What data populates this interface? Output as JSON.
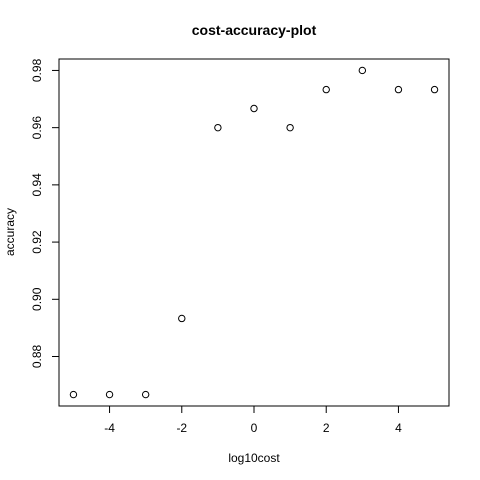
{
  "chart_data": {
    "type": "scatter",
    "title": "cost-accuracy-plot",
    "xlabel": "log10cost",
    "ylabel": "accuracy",
    "xlim": [
      -5.4,
      5.4
    ],
    "ylim": [
      0.8627,
      0.984
    ],
    "x_ticks": [
      -4,
      -2,
      0,
      2,
      4
    ],
    "y_ticks": [
      0.88,
      0.9,
      0.92,
      0.94,
      0.96,
      0.98
    ],
    "x_tick_labels": [
      "-4",
      "-2",
      "0",
      "2",
      "4"
    ],
    "y_tick_labels": [
      "0.88",
      "0.90",
      "0.92",
      "0.94",
      "0.96",
      "0.98"
    ],
    "x": [
      -5,
      -4,
      -3,
      -2,
      -1,
      0,
      1,
      2,
      3,
      4,
      5
    ],
    "y": [
      0.8667,
      0.8667,
      0.8667,
      0.8933,
      0.96,
      0.9667,
      0.96,
      0.9733,
      0.98,
      0.9733,
      0.9733
    ],
    "grid": false,
    "marker": "open-circle",
    "colors": {
      "point": "#000000",
      "axis": "#000000",
      "background": "#ffffff"
    }
  }
}
